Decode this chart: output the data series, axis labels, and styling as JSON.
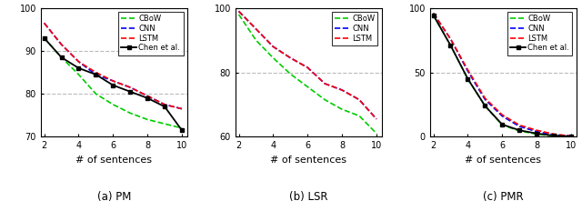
{
  "x": [
    2,
    3,
    4,
    5,
    6,
    7,
    8,
    9,
    10
  ],
  "pm": {
    "CBoW": [
      93.0,
      88.5,
      84.5,
      80.0,
      77.5,
      75.5,
      74.0,
      73.0,
      72.0
    ],
    "CNN": [
      96.5,
      91.5,
      87.5,
      84.5,
      83.0,
      81.5,
      79.5,
      77.5,
      76.5
    ],
    "LSTM": [
      96.5,
      91.5,
      87.5,
      85.0,
      83.0,
      81.5,
      79.5,
      77.5,
      76.5
    ],
    "Chen": [
      93.0,
      88.5,
      86.0,
      84.5,
      82.0,
      80.5,
      79.0,
      77.0,
      71.5
    ]
  },
  "lsr": {
    "CBoW": [
      98.0,
      90.0,
      84.5,
      79.5,
      75.5,
      71.5,
      68.5,
      66.5,
      61.0
    ],
    "CNN": [
      99.0,
      93.5,
      88.0,
      84.5,
      81.5,
      76.5,
      74.5,
      71.5,
      65.5
    ],
    "LSTM": [
      99.0,
      93.5,
      88.0,
      84.5,
      81.5,
      76.5,
      74.5,
      71.5,
      65.5
    ]
  },
  "pmr": {
    "CBoW": [
      94.5,
      71.0,
      45.0,
      24.0,
      9.0,
      4.5,
      2.0,
      0.5,
      0.2
    ],
    "CNN": [
      96.0,
      76.0,
      51.0,
      29.0,
      16.0,
      8.0,
      4.0,
      1.5,
      0.5
    ],
    "LSTM": [
      96.0,
      76.0,
      52.0,
      30.0,
      17.0,
      9.0,
      5.0,
      2.0,
      0.5
    ],
    "Chen": [
      94.5,
      71.0,
      45.0,
      24.0,
      9.5,
      5.0,
      2.5,
      0.8,
      0.3
    ]
  },
  "colors": {
    "CBoW": "#00cc00",
    "CNN": "#0000ff",
    "LSTM": "#ff0000",
    "Chen": "#000000"
  },
  "ylims": {
    "pm": [
      70,
      100
    ],
    "lsr": [
      60,
      100
    ],
    "pmr": [
      0,
      100
    ]
  },
  "yticks": {
    "pm": [
      70,
      80,
      90,
      100
    ],
    "lsr": [
      60,
      80,
      100
    ],
    "pmr": [
      0,
      50,
      100
    ]
  },
  "captions": [
    "(a) PM",
    "(b) LSR",
    "(c) PMR"
  ],
  "xlabel": "# of sentences",
  "grid_color": "#bbbbbb"
}
